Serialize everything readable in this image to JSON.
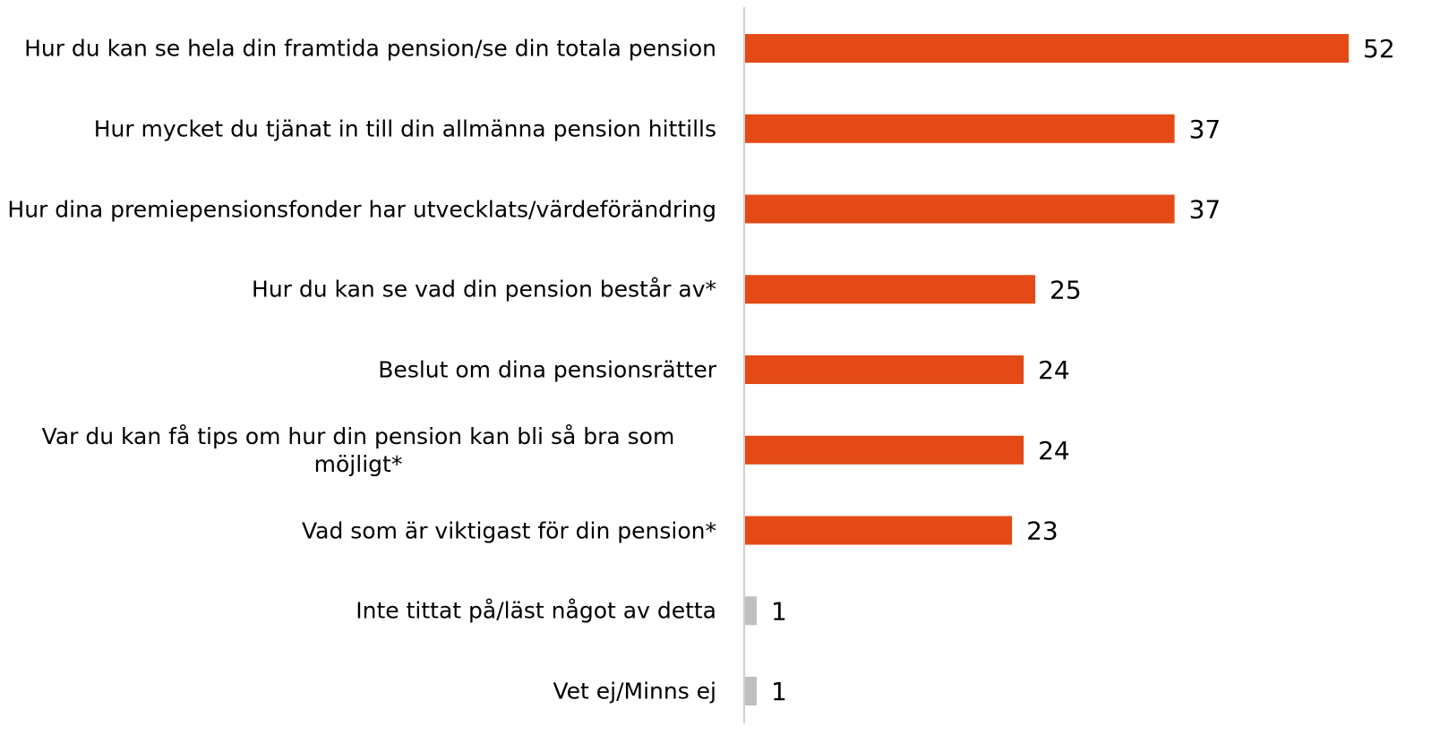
{
  "chart_data": {
    "type": "barh",
    "categories": [
      "Hur du kan se hela din framtida pension/se din totala pension",
      "Hur mycket du tjänat in till din allmänna pension hittills",
      "Hur dina premiepensionsfonder har utvecklats/värdeförändring",
      "Hur du kan se vad din pension består av*",
      "Beslut om dina pensionsrätter",
      "Var du kan få tips om hur din pension kan bli så bra som möjligt*",
      "Vad som är viktigast för din pension*",
      "Inte tittat på/läst något av detta",
      "Vet ej/Minns ej"
    ],
    "values": [
      52,
      37,
      37,
      25,
      24,
      24,
      23,
      1,
      1
    ],
    "colors": [
      "#e34a16",
      "#e34a16",
      "#e34a16",
      "#e34a16",
      "#e34a16",
      "#e34a16",
      "#e34a16",
      "#bfbfbf",
      "#bfbfbf"
    ]
  }
}
